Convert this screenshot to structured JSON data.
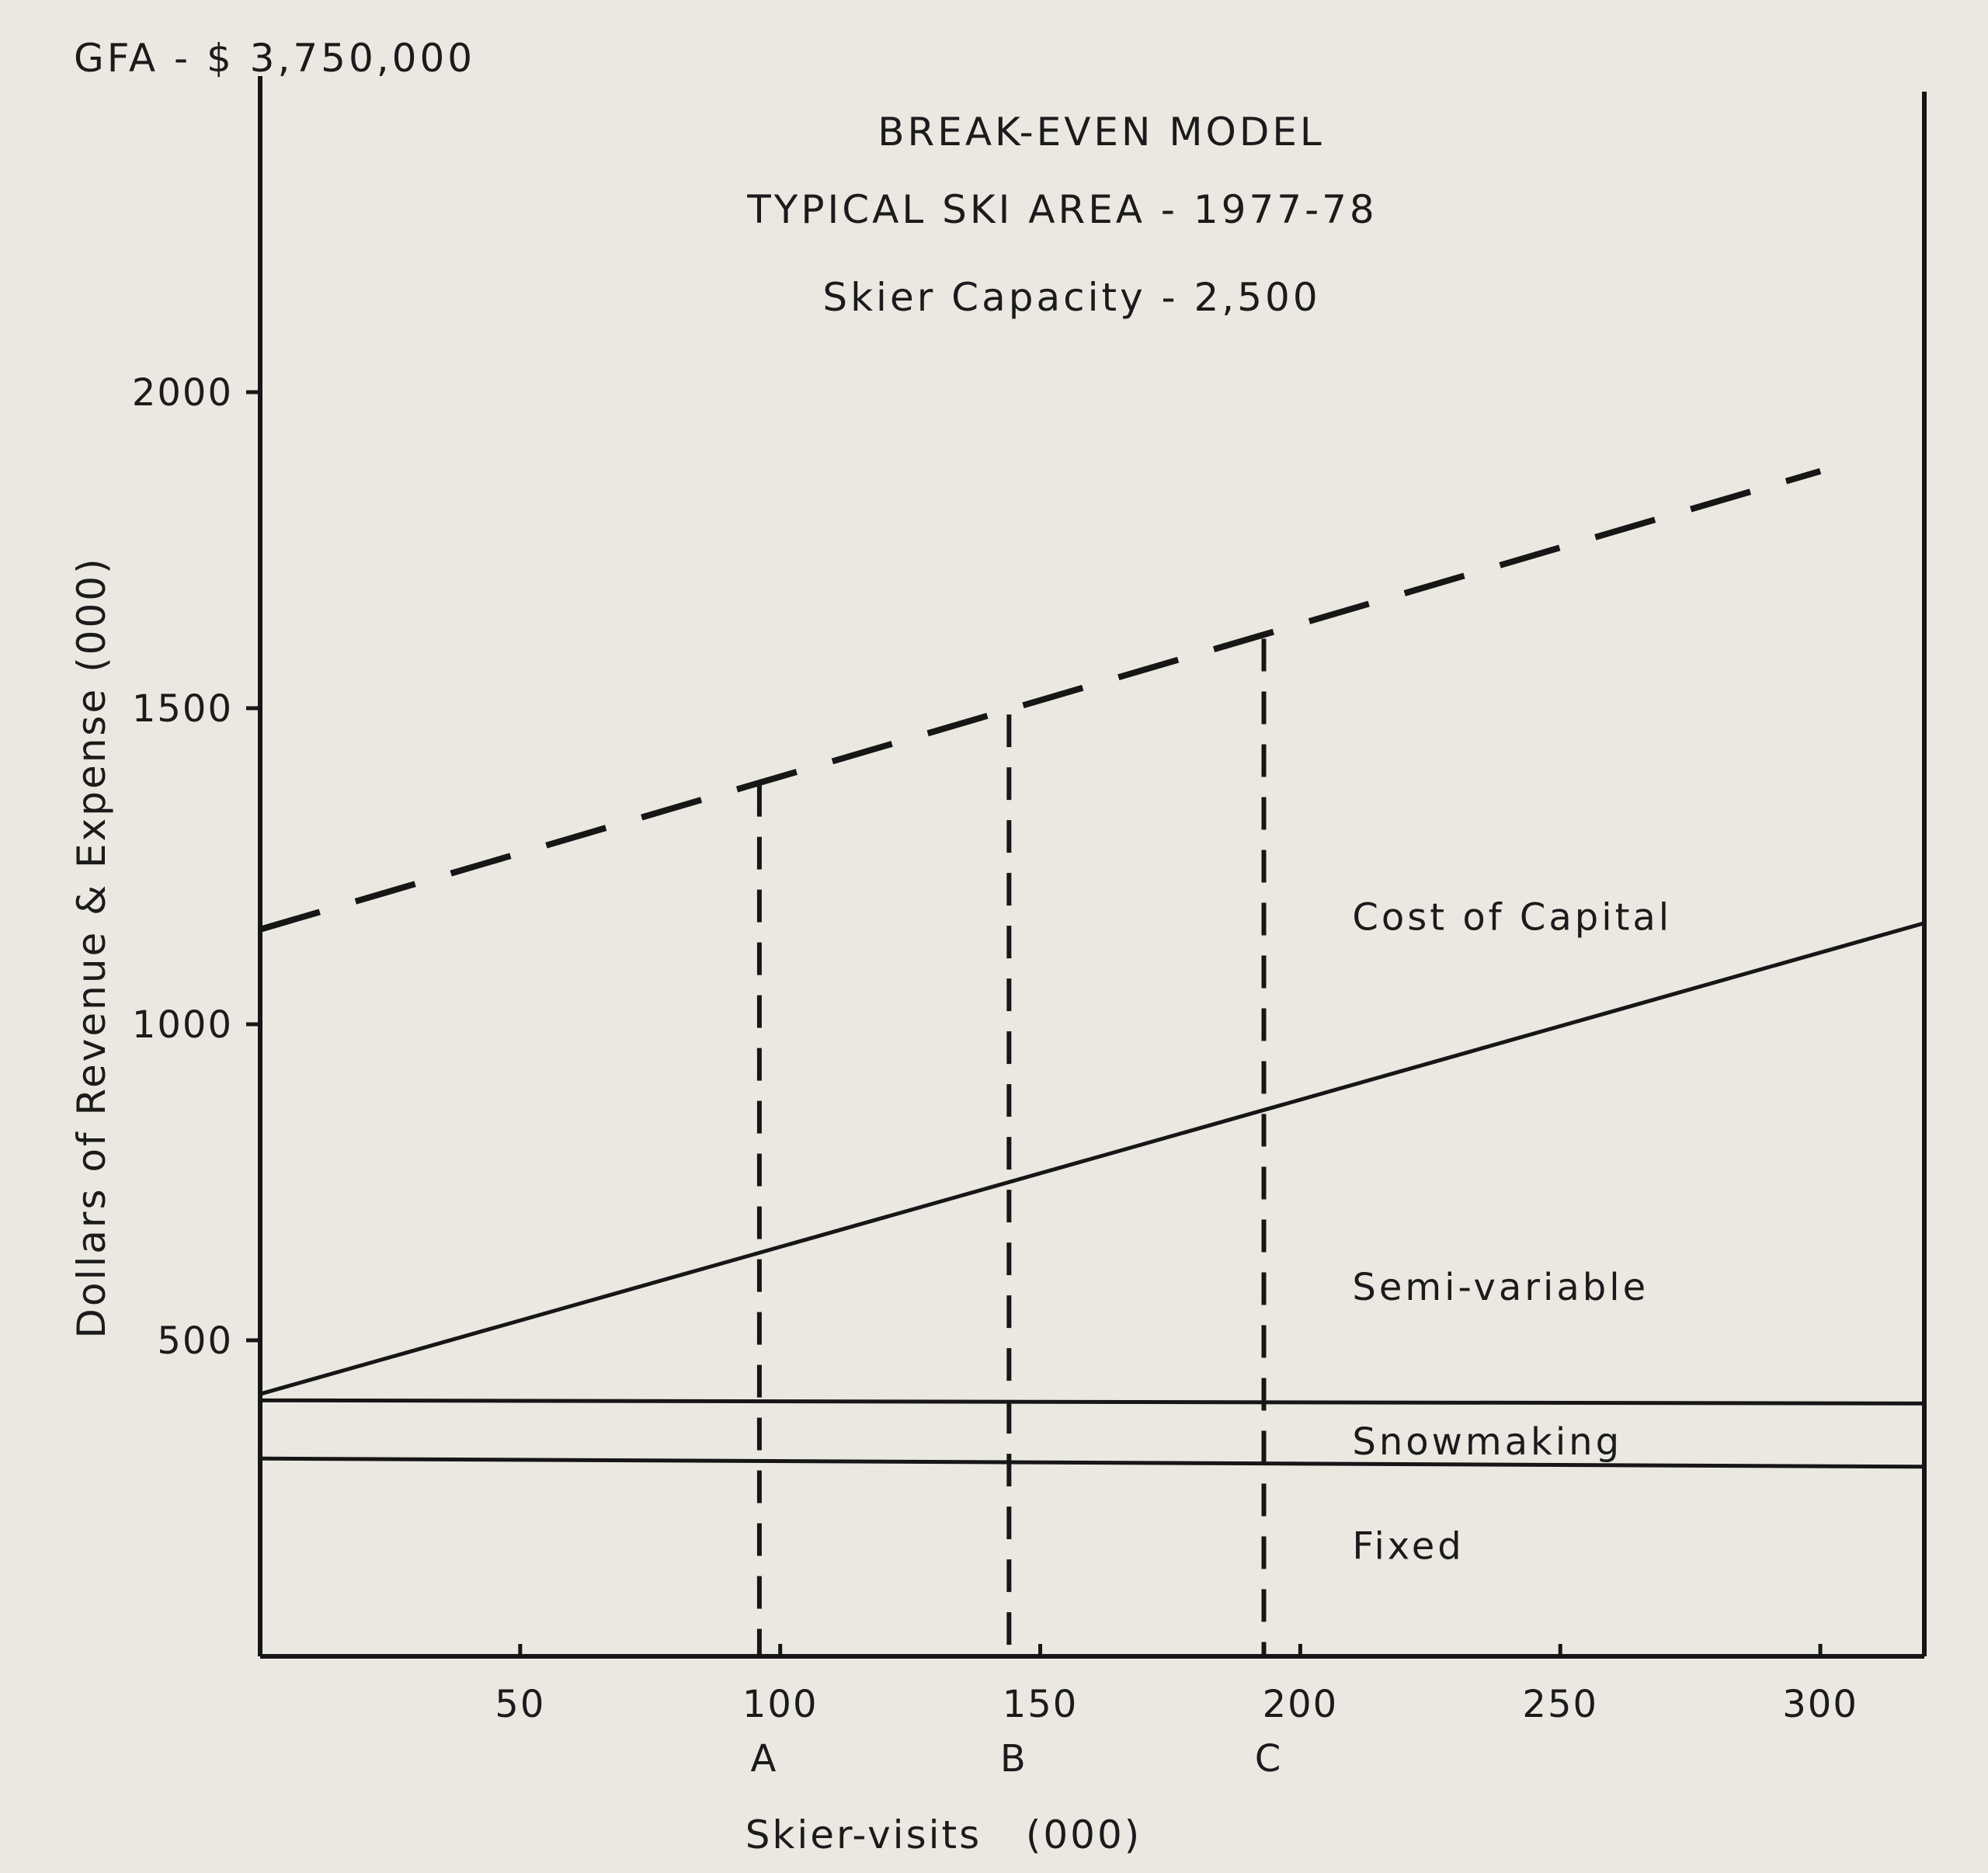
{
  "chart_data": {
    "type": "line",
    "note_top_left": "GFA - $ 3,750,000",
    "title": "BREAK-EVEN MODEL",
    "subtitle": "TYPICAL SKI AREA - 1977-78",
    "subtitle2": "Skier Capacity - 2,500",
    "xlabel": "Skier-visits   (000)",
    "ylabel": "Dollars of Revenue & Expense  (000)",
    "xlim": [
      0,
      320
    ],
    "ylim": [
      0,
      2500
    ],
    "x_ticks": [
      {
        "value": 50,
        "label": "50"
      },
      {
        "value": 100,
        "label": "100"
      },
      {
        "value": 150,
        "label": "150"
      },
      {
        "value": 200,
        "label": "200"
      },
      {
        "value": 250,
        "label": "250"
      },
      {
        "value": 300,
        "label": "300"
      }
    ],
    "y_ticks": [
      {
        "value": 500,
        "label": "500"
      },
      {
        "value": 1000,
        "label": "1000"
      },
      {
        "value": 1500,
        "label": "1500"
      },
      {
        "value": 2000,
        "label": "2000"
      }
    ],
    "grid": false,
    "series": [
      {
        "style": "dashed",
        "x": [
          0,
          300
        ],
        "y": [
          1150,
          1875
        ]
      },
      {
        "style": "solid",
        "x": [
          0,
          320
        ],
        "y": [
          415,
          1160
        ]
      },
      {
        "style": "solid",
        "x": [
          0,
          320
        ],
        "y": [
          405,
          400
        ]
      },
      {
        "style": "solid",
        "x": [
          0,
          320
        ],
        "y": [
          313,
          300
        ]
      }
    ],
    "markers": [
      {
        "label": "A",
        "x": 96,
        "top": 1380
      },
      {
        "label": "B",
        "x": 144,
        "top": 1490
      },
      {
        "label": "C",
        "x": 193,
        "top": 1610
      }
    ],
    "regions": [
      {
        "label": "Cost of Capital",
        "x": 210,
        "y": 1170
      },
      {
        "label": "Semi-variable",
        "x": 210,
        "y": 585
      },
      {
        "label": "Snowmaking",
        "x": 210,
        "y": 340
      },
      {
        "label": "Fixed",
        "x": 210,
        "y": 175
      }
    ]
  }
}
